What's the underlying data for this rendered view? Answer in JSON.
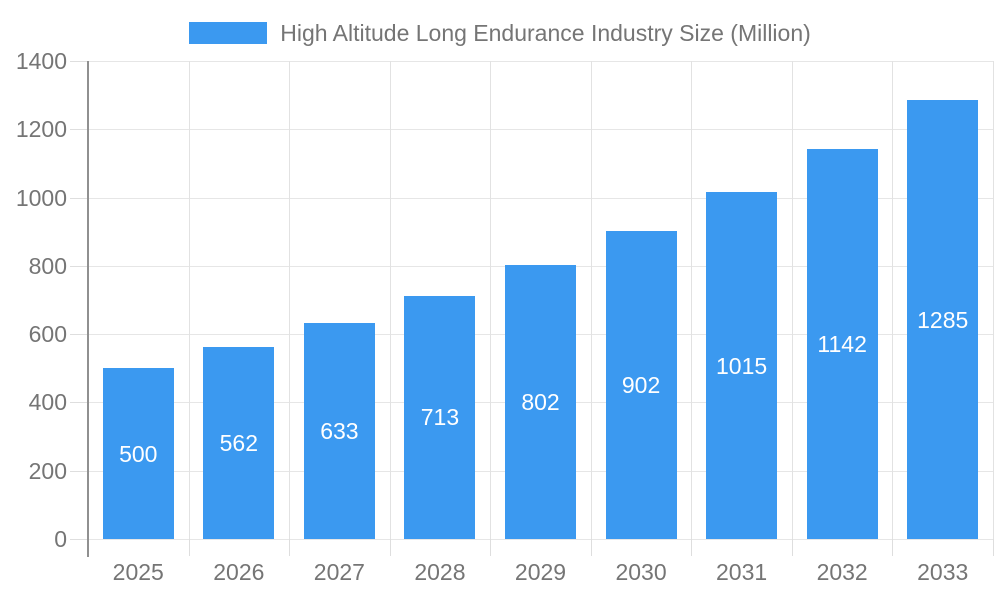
{
  "legend": {
    "label": "High Altitude Long Endurance Industry Size (Million)"
  },
  "chart_data": {
    "type": "bar",
    "title": "High Altitude Long Endurance Industry Size (Million)",
    "categories": [
      "2025",
      "2026",
      "2027",
      "2028",
      "2029",
      "2030",
      "2031",
      "2032",
      "2033"
    ],
    "values": [
      500,
      562,
      633,
      713,
      802,
      902,
      1015,
      1142,
      1285
    ],
    "xlabel": "",
    "ylabel": "",
    "ylim": [
      0,
      1400
    ],
    "yticks": [
      0,
      200,
      400,
      600,
      800,
      1000,
      1200,
      1400
    ],
    "grid": true,
    "legend_position": "top-center",
    "colors": {
      "bar": "#3b99f0",
      "bar_value_text": "#ffffff",
      "axis_text": "#757575",
      "grid_horizontal": "#e6e6e6",
      "grid_vertical": "#e2e2e2",
      "y_axis_line": "#909090"
    }
  }
}
